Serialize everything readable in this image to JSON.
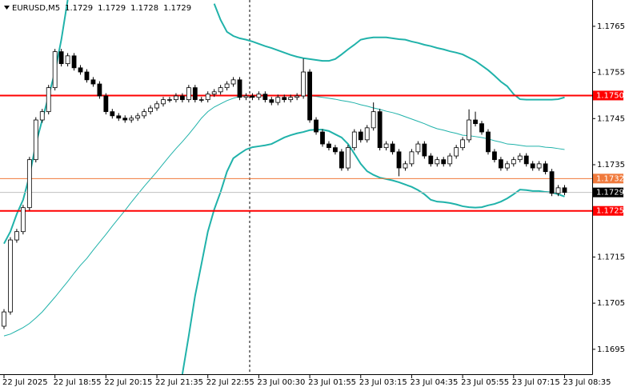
{
  "chart_data": {
    "type": "candlestick",
    "symbol": "EURUSD,M5",
    "header_values": [
      1.1729,
      1.1729,
      1.1728,
      1.1729
    ],
    "categories": [
      "22 Jul 2025",
      null,
      null,
      null,
      null,
      null,
      null,
      null,
      "22 Jul 18:55",
      null,
      null,
      null,
      null,
      null,
      null,
      null,
      "22 Jul 20:15",
      null,
      null,
      null,
      null,
      null,
      null,
      null,
      "22 Jul 21:35",
      null,
      null,
      null,
      null,
      null,
      null,
      null,
      "22 Jul 22:55",
      null,
      null,
      null,
      null,
      null,
      null,
      null,
      "23 Jul 00:30",
      null,
      null,
      null,
      null,
      null,
      null,
      null,
      "23 Jul 01:55",
      null,
      null,
      null,
      null,
      null,
      null,
      null,
      "23 Jul 03:15",
      null,
      null,
      null,
      null,
      null,
      null,
      null,
      "23 Jul 04:35",
      null,
      null,
      null,
      null,
      null,
      null,
      null,
      "23 Jul 05:55",
      null,
      null,
      null,
      null,
      null,
      null,
      null,
      "23 Jul 07:15",
      null,
      null,
      null,
      null,
      null,
      null,
      null,
      "23 Jul 08:35"
    ],
    "open": [
      1.17,
      1.17031,
      1.17187,
      1.17205,
      1.17257,
      1.17361,
      1.17447,
      1.17465,
      1.17517,
      1.17595,
      1.17569,
      1.17586,
      1.1756,
      1.17551,
      1.17534,
      1.17525,
      1.17499,
      1.17465,
      1.17456,
      1.17451,
      1.17447,
      1.17451,
      1.17456,
      1.17465,
      1.17473,
      1.17482,
      1.17491,
      1.17491,
      1.17499,
      1.17491,
      1.17517,
      1.17491,
      1.17491,
      1.17503,
      1.17508,
      1.17517,
      1.17525,
      1.17534,
      1.17496,
      1.17499,
      1.17496,
      1.17503,
      1.17491,
      1.17485,
      1.17496,
      1.17491,
      1.17496,
      1.17499,
      1.17551,
      1.17447,
      1.17421,
      1.17395,
      1.17387,
      1.17378,
      1.17343,
      1.17387,
      1.17421,
      1.17404,
      1.1743,
      1.17465,
      1.17387,
      1.17395,
      1.17378,
      1.17343,
      1.17352,
      1.17378,
      1.17395,
      1.17369,
      1.17352,
      1.17361,
      1.17352,
      1.17369,
      1.17387,
      1.17404,
      1.17447,
      1.17439,
      1.17421,
      1.17378,
      1.17361,
      1.17343,
      1.17352,
      1.17361,
      1.17369,
      1.17352,
      1.17343,
      1.17352,
      1.17335,
      1.17288,
      1.173
    ],
    "high": [
      1.17037,
      1.17193,
      1.17211,
      1.17263,
      1.17367,
      1.17453,
      1.17471,
      1.17523,
      1.17601,
      1.17601,
      1.17592,
      1.17592,
      1.17566,
      1.17557,
      1.1754,
      1.17531,
      1.17505,
      1.17471,
      1.17462,
      1.17457,
      1.17457,
      1.17462,
      1.17471,
      1.17479,
      1.17488,
      1.17497,
      1.17497,
      1.17505,
      1.17505,
      1.17523,
      1.17523,
      1.17497,
      1.17509,
      1.17514,
      1.17523,
      1.17531,
      1.1754,
      1.1754,
      1.17505,
      1.17505,
      1.17509,
      1.17509,
      1.17497,
      1.17502,
      1.17502,
      1.17502,
      1.17505,
      1.1758,
      1.17557,
      1.17453,
      1.17427,
      1.17401,
      1.17393,
      1.17384,
      1.17393,
      1.17427,
      1.17427,
      1.17436,
      1.17485,
      1.17471,
      1.17401,
      1.17401,
      1.17384,
      1.17358,
      1.17384,
      1.17401,
      1.17401,
      1.17375,
      1.17367,
      1.17367,
      1.17375,
      1.17393,
      1.1741,
      1.1747,
      1.17465,
      1.17445,
      1.17427,
      1.17384,
      1.17367,
      1.17358,
      1.17367,
      1.17375,
      1.17375,
      1.17358,
      1.17358,
      1.17358,
      1.17341,
      1.17306,
      1.17306
    ],
    "low": [
      1.16994,
      1.17025,
      1.17181,
      1.17199,
      1.17251,
      1.17355,
      1.17441,
      1.17459,
      1.17511,
      1.17563,
      1.17563,
      1.17554,
      1.17545,
      1.17528,
      1.17519,
      1.17493,
      1.17459,
      1.1745,
      1.17445,
      1.17441,
      1.17441,
      1.17445,
      1.1745,
      1.17459,
      1.17467,
      1.17476,
      1.17485,
      1.17485,
      1.17485,
      1.17485,
      1.17485,
      1.17485,
      1.17485,
      1.17497,
      1.17502,
      1.17511,
      1.17519,
      1.1749,
      1.1749,
      1.1749,
      1.1749,
      1.17485,
      1.17479,
      1.17479,
      1.17485,
      1.17485,
      1.1749,
      1.17493,
      1.17441,
      1.17415,
      1.17389,
      1.17381,
      1.17372,
      1.17337,
      1.17337,
      1.17381,
      1.17398,
      1.17398,
      1.17424,
      1.17381,
      1.17381,
      1.17372,
      1.17325,
      1.17337,
      1.17346,
      1.17372,
      1.17363,
      1.17346,
      1.17346,
      1.17346,
      1.17346,
      1.17363,
      1.17381,
      1.17398,
      1.17433,
      1.17415,
      1.17372,
      1.17355,
      1.17337,
      1.17337,
      1.17346,
      1.17355,
      1.17346,
      1.17337,
      1.17337,
      1.17329,
      1.17282,
      1.17282,
      1.17284
    ],
    "close": [
      1.17031,
      1.17187,
      1.17205,
      1.17257,
      1.17361,
      1.17447,
      1.17465,
      1.17517,
      1.17595,
      1.17569,
      1.17586,
      1.1756,
      1.17551,
      1.17534,
      1.17525,
      1.17499,
      1.17465,
      1.17456,
      1.17451,
      1.17447,
      1.17451,
      1.17456,
      1.17465,
      1.17473,
      1.17482,
      1.17491,
      1.17491,
      1.17499,
      1.17491,
      1.17517,
      1.17491,
      1.17491,
      1.17503,
      1.17508,
      1.17517,
      1.17525,
      1.17534,
      1.17496,
      1.17499,
      1.17496,
      1.17503,
      1.17491,
      1.17485,
      1.17496,
      1.17491,
      1.17496,
      1.17499,
      1.17551,
      1.17447,
      1.17421,
      1.17395,
      1.17387,
      1.17378,
      1.17343,
      1.17387,
      1.17421,
      1.17404,
      1.1743,
      1.17465,
      1.17387,
      1.17395,
      1.17378,
      1.17343,
      1.17352,
      1.17378,
      1.17395,
      1.17369,
      1.17352,
      1.17361,
      1.17352,
      1.17369,
      1.17387,
      1.17404,
      1.17447,
      1.17439,
      1.17421,
      1.17378,
      1.17361,
      1.17343,
      1.17352,
      1.17361,
      1.17369,
      1.17352,
      1.17343,
      1.17352,
      1.17335,
      1.17288,
      1.173,
      1.1729
    ],
    "overlays": [
      {
        "color": "#20b2aa",
        "width": 2,
        "values": [
          1.17179,
          1.17205,
          1.17243,
          1.17274,
          1.17326,
          1.17395,
          1.17447,
          1.17499,
          1.17551,
          1.17621,
          1.17707,
          null,
          null,
          null,
          null,
          null,
          null,
          null,
          null,
          null,
          null,
          null,
          null,
          null,
          null,
          null,
          null,
          null,
          null,
          null,
          null,
          null,
          null,
          1.17699,
          1.17664,
          1.17638,
          1.17629,
          1.17624,
          1.17621,
          1.17617,
          1.17612,
          1.17607,
          1.17603,
          1.17598,
          1.17593,
          1.17588,
          1.17584,
          1.17581,
          1.17579,
          1.17577,
          1.17575,
          1.17575,
          1.17579,
          1.17589,
          1.176,
          1.1761,
          1.17621,
          1.17624,
          1.17626,
          1.17626,
          1.17626,
          1.17624,
          1.17622,
          1.17621,
          1.17617,
          1.17614,
          1.1761,
          1.17607,
          1.17603,
          1.176,
          1.17596,
          1.17593,
          1.17589,
          1.17582,
          1.17575,
          1.17565,
          1.17555,
          1.17543,
          1.1753,
          1.1752,
          1.17503,
          1.17492,
          1.17491,
          1.17491,
          1.17491,
          1.17491,
          1.17491,
          1.17492,
          1.17496
        ]
      },
      {
        "color": "#20b2aa",
        "width": 1,
        "values": [
          1.16979,
          1.16983,
          1.1699,
          1.16997,
          1.17006,
          1.17018,
          1.17031,
          1.17047,
          1.17063,
          1.1708,
          1.17097,
          1.17115,
          1.17132,
          1.17147,
          1.17165,
          1.17182,
          1.17199,
          1.17217,
          1.17234,
          1.17251,
          1.17269,
          1.17286,
          1.17303,
          1.17319,
          1.17335,
          1.17352,
          1.17369,
          1.17385,
          1.174,
          1.17416,
          1.17433,
          1.17451,
          1.17465,
          1.17475,
          1.17482,
          1.17489,
          1.17494,
          1.17498,
          1.17499,
          1.17499,
          1.17499,
          1.17499,
          1.17499,
          1.17499,
          1.17499,
          1.17499,
          1.17499,
          1.17499,
          1.17499,
          1.17498,
          1.17496,
          1.17494,
          1.17492,
          1.17489,
          1.17487,
          1.17484,
          1.1748,
          1.17477,
          1.17473,
          1.1747,
          1.17466,
          1.17463,
          1.17459,
          1.17454,
          1.17449,
          1.17444,
          1.17439,
          1.17433,
          1.17428,
          1.17425,
          1.17421,
          1.17418,
          1.17414,
          1.17413,
          1.17411,
          1.17409,
          1.17406,
          1.17402,
          1.17399,
          1.17395,
          1.17394,
          1.17392,
          1.1739,
          1.1739,
          1.1739,
          1.17388,
          1.17387,
          1.17385,
          1.17383
        ]
      },
      {
        "color": "#20b2aa",
        "width": 2,
        "values": [
          null,
          null,
          null,
          null,
          null,
          null,
          null,
          null,
          null,
          null,
          null,
          null,
          null,
          null,
          null,
          null,
          null,
          null,
          null,
          null,
          null,
          null,
          null,
          null,
          null,
          null,
          null,
          null,
          1.16896,
          1.16979,
          1.17066,
          1.17135,
          1.17205,
          1.17253,
          1.17291,
          1.17335,
          1.17364,
          1.17374,
          1.17383,
          1.17388,
          1.1739,
          1.17392,
          1.17395,
          1.17402,
          1.17409,
          1.17414,
          1.17418,
          1.17421,
          1.17425,
          1.17426,
          1.17426,
          1.17423,
          1.17416,
          1.17409,
          1.17395,
          1.17374,
          1.17352,
          1.17336,
          1.17328,
          1.17322,
          1.17319,
          1.17316,
          1.17312,
          1.17307,
          1.17302,
          1.17295,
          1.17286,
          1.17274,
          1.1727,
          1.17269,
          1.17267,
          1.17264,
          1.1726,
          1.17258,
          1.17257,
          1.17258,
          1.17262,
          1.17265,
          1.1727,
          1.17277,
          1.17286,
          1.17296,
          1.17295,
          1.17293,
          1.17293,
          1.17291,
          1.1729,
          1.17286,
          1.17281
        ]
      }
    ],
    "levels": [
      {
        "value": 1.175,
        "label": "1.1750",
        "color": "#ff0000",
        "width": 2
      },
      {
        "value": 1.1732,
        "color": "#f07a3c",
        "width": 1
      },
      {
        "value": 1.1725,
        "color": "#ff0000",
        "width": 2
      }
    ],
    "last_price": {
      "value": 1.1729,
      "color": "#c0c0c0"
    },
    "ylim": [
      1.16896,
      1.17707
    ],
    "yticks": [
      1.1765,
      1.1755,
      1.1745,
      1.1735,
      1.1715,
      1.1705,
      1.1695
    ]
  }
}
